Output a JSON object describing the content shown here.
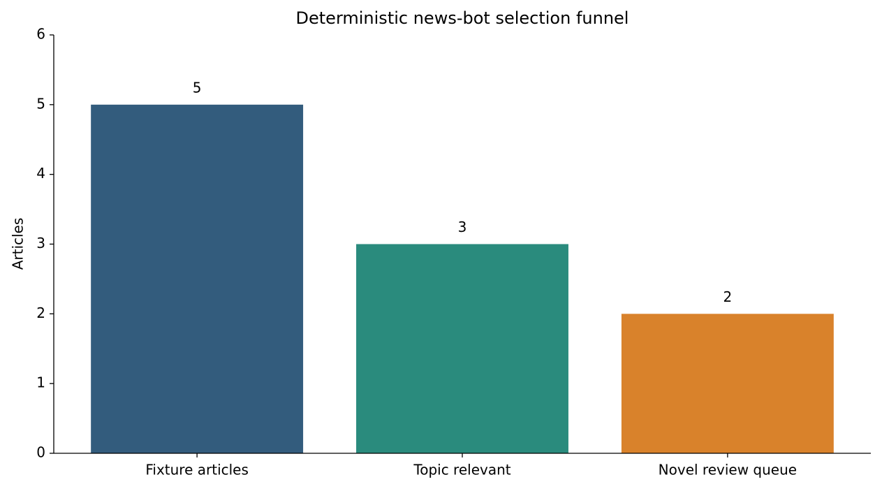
{
  "chart_data": {
    "type": "bar",
    "title": "Deterministic news-bot selection funnel",
    "y_label": "Articles",
    "categories": [
      "Fixture articles",
      "Topic relevant",
      "Novel review queue"
    ],
    "values": [
      5,
      3,
      2
    ],
    "colors": [
      "#335c7d",
      "#2a8b7d",
      "#d9822b"
    ],
    "ylim": [
      0,
      6
    ],
    "yticks": [
      0,
      1,
      2,
      3,
      4,
      5,
      6
    ],
    "grid": false
  }
}
